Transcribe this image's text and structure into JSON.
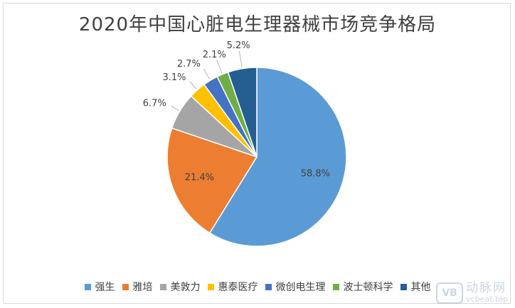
{
  "watermark": {
    "logo": "VB",
    "name": "动脉网",
    "url": "vcbeat.top"
  },
  "chart_data": {
    "type": "pie",
    "title": "2020年中国心脏电生理器械市场竞争格局",
    "start_angle_deg": 0,
    "direction": "clockwise",
    "legend_position": "bottom",
    "slices": [
      {
        "name": "强生",
        "value": 58.8,
        "label": "58.8%",
        "color": "#5b9bd5"
      },
      {
        "name": "雅培",
        "value": 21.4,
        "label": "21.4%",
        "color": "#ed7d31"
      },
      {
        "name": "美敦力",
        "value": 6.7,
        "label": "6.7%",
        "color": "#a5a5a5"
      },
      {
        "name": "惠泰医疗",
        "value": 3.1,
        "label": "3.1%",
        "color": "#ffc000"
      },
      {
        "name": "微创电生理",
        "value": 2.7,
        "label": "2.7%",
        "color": "#4472c4"
      },
      {
        "name": "波士顿科学",
        "value": 2.1,
        "label": "2.1%",
        "color": "#70ad47"
      },
      {
        "name": "其他",
        "value": 5.2,
        "label": "5.2%",
        "color": "#255e91"
      }
    ]
  }
}
